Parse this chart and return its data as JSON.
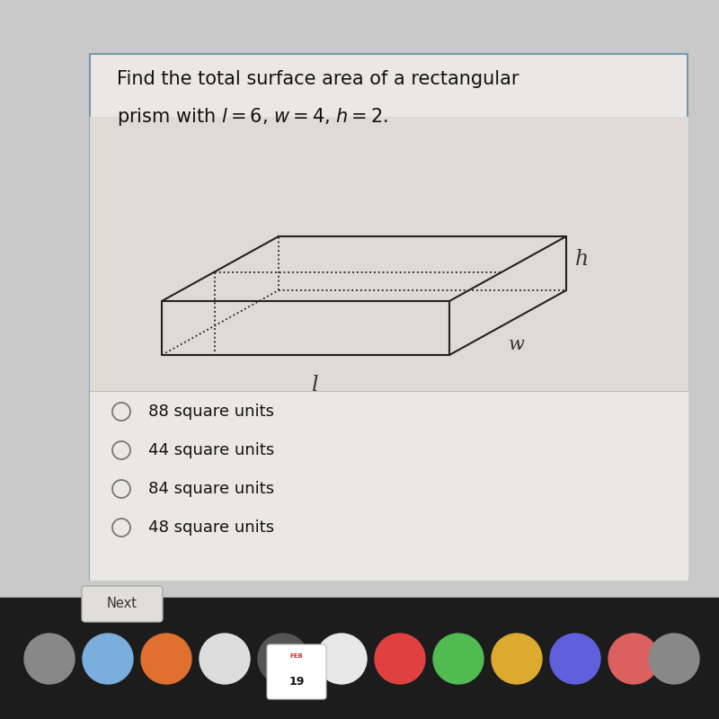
{
  "title_line1": "Find the total surface area of a rectangular",
  "title_line2": "prism with $l = 6$, $w = 4$, $h = 2$.",
  "choices": [
    "88 square units",
    "44 square units",
    "84 square units",
    "48 square units"
  ],
  "outer_bg": "#c8c8c8",
  "card_bg": "#e8e6e2",
  "card_border": "#7799aa",
  "prism_area_bg": "#dedad4",
  "text_color": "#111111",
  "prism_color": "#222222",
  "label_l": "l",
  "label_w": "w",
  "label_h": "h",
  "next_btn_color": "#d0ceca",
  "next_btn_border": "#aaaaaa",
  "taskbar_color": "#1a1a1a",
  "title_fontsize": 15.0,
  "choice_fontsize": 13.0
}
